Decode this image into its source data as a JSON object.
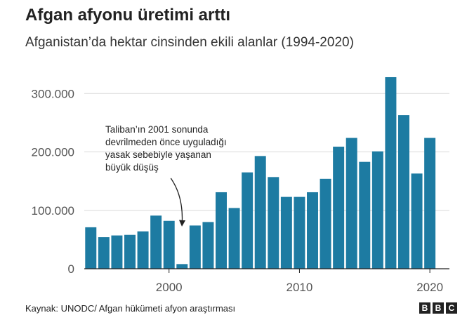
{
  "header": {
    "title": "Afgan afyonu üretimi arttı",
    "subtitle": "Afganistan’da hektar cinsinden ekili alanlar (1994-2020)"
  },
  "footer": {
    "source": "Kaynak: UNODC/ Afgan hükümeti afyon araştırması",
    "logo_letters": [
      "B",
      "B",
      "C"
    ]
  },
  "colors": {
    "bar": "#1d7ba2",
    "grid": "#d9d9d9",
    "axis": "#222222"
  },
  "chart_data": {
    "type": "bar",
    "title": "Afgan afyonu üretimi arttı",
    "subtitle": "Afganistan’da hektar cinsinden ekili alanlar (1994-2020)",
    "xlabel": "",
    "ylabel": "",
    "categories": [
      1994,
      1995,
      1996,
      1997,
      1998,
      1999,
      2000,
      2001,
      2002,
      2003,
      2004,
      2005,
      2006,
      2007,
      2008,
      2009,
      2010,
      2011,
      2012,
      2013,
      2014,
      2015,
      2016,
      2017,
      2018,
      2019,
      2020
    ],
    "values": [
      71000,
      54000,
      57000,
      58000,
      64000,
      91000,
      82000,
      8000,
      74000,
      80000,
      131000,
      104000,
      165000,
      193000,
      157000,
      123000,
      123000,
      131000,
      154000,
      209000,
      224000,
      183000,
      201000,
      328000,
      263000,
      163000,
      224000
    ],
    "ylim": [
      0,
      340000
    ],
    "xlim": [
      1993.5,
      2021.5
    ],
    "y_ticks": [
      {
        "value": 0,
        "label": "0"
      },
      {
        "value": 100000,
        "label": "100.000"
      },
      {
        "value": 200000,
        "label": "200.000"
      },
      {
        "value": 300000,
        "label": "300.000"
      }
    ],
    "x_ticks": [
      {
        "value": 2000,
        "label": "2000"
      },
      {
        "value": 2010,
        "label": "2010"
      },
      {
        "value": 2020,
        "label": "2020"
      }
    ],
    "grid": true,
    "annotation": {
      "lines": [
        "Taliban’ın 2001 sonunda",
        "devrilmeden önce uyguladığı",
        "yasak sebebiyle yaşanan",
        "büyük düşüş"
      ],
      "target_year": 2001
    }
  }
}
